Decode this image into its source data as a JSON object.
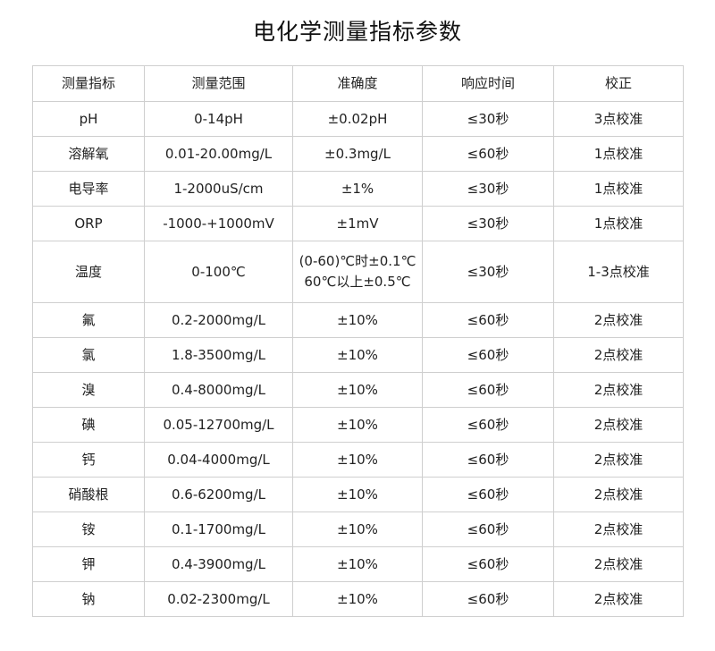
{
  "title": "电化学测量指标参数",
  "table": {
    "headers": [
      "测量指标",
      "测量范围",
      "准确度",
      "响应时间",
      "校正"
    ],
    "rows": [
      [
        "pH",
        "0-14pH",
        [
          "±0.02pH"
        ],
        "≤30秒",
        "3点校准"
      ],
      [
        "溶解氧",
        "0.01-20.00mg/L",
        [
          "±0.3mg/L"
        ],
        "≤60秒",
        "1点校准"
      ],
      [
        "电导率",
        "1-2000uS/cm",
        [
          "±1%"
        ],
        "≤30秒",
        "1点校准"
      ],
      [
        "ORP",
        "-1000-+1000mV",
        [
          "±1mV"
        ],
        "≤30秒",
        "1点校准"
      ],
      [
        "温度",
        "0-100℃",
        [
          "(0-60)℃时±0.1℃",
          "60℃以上±0.5℃"
        ],
        "≤30秒",
        "1-3点校准"
      ],
      [
        "氟",
        "0.2-2000mg/L",
        [
          "±10%"
        ],
        "≤60秒",
        "2点校准"
      ],
      [
        "氯",
        "1.8-3500mg/L",
        [
          "±10%"
        ],
        "≤60秒",
        "2点校准"
      ],
      [
        "溴",
        "0.4-8000mg/L",
        [
          "±10%"
        ],
        "≤60秒",
        "2点校准"
      ],
      [
        "碘",
        "0.05-12700mg/L",
        [
          "±10%"
        ],
        "≤60秒",
        "2点校准"
      ],
      [
        "钙",
        "0.04-4000mg/L",
        [
          "±10%"
        ],
        "≤60秒",
        "2点校准"
      ],
      [
        "硝酸根",
        "0.6-6200mg/L",
        [
          "±10%"
        ],
        "≤60秒",
        "2点校准"
      ],
      [
        "铵",
        "0.1-1700mg/L",
        [
          "±10%"
        ],
        "≤60秒",
        "2点校准"
      ],
      [
        "钾",
        "0.4-3900mg/L",
        [
          "±10%"
        ],
        "≤60秒",
        "2点校准"
      ],
      [
        "钠",
        "0.02-2300mg/L",
        [
          "±10%"
        ],
        "≤60秒",
        "2点校准"
      ]
    ]
  }
}
